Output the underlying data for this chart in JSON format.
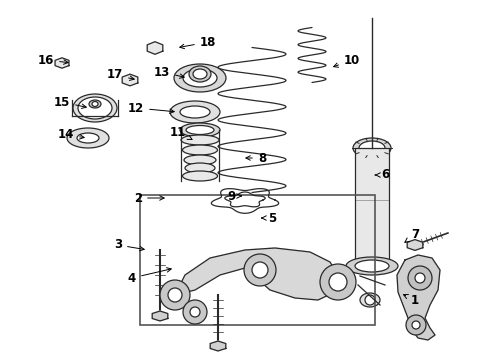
{
  "bg_color": "#ffffff",
  "line_color": "#2a2a2a",
  "label_color": "#000000",
  "figsize": [
    4.89,
    3.6
  ],
  "dpi": 100,
  "font_size": 8.5,
  "label_positions": {
    "1": [
      415,
      300,
      400,
      293
    ],
    "2": [
      138,
      198,
      168,
      198
    ],
    "3": [
      118,
      245,
      148,
      250
    ],
    "4": [
      132,
      278,
      175,
      268
    ],
    "5": [
      272,
      218,
      258,
      218
    ],
    "6": [
      385,
      175,
      372,
      175
    ],
    "7": [
      415,
      235,
      404,
      243
    ],
    "8": [
      262,
      158,
      242,
      158
    ],
    "9": [
      231,
      196,
      245,
      196
    ],
    "10": [
      352,
      60,
      330,
      68
    ],
    "11": [
      178,
      132,
      193,
      140
    ],
    "12": [
      136,
      108,
      178,
      112
    ],
    "13": [
      162,
      72,
      188,
      78
    ],
    "14": [
      66,
      135,
      88,
      138
    ],
    "15": [
      62,
      102,
      90,
      108
    ],
    "16": [
      46,
      60,
      72,
      63
    ],
    "17": [
      115,
      75,
      138,
      80
    ],
    "18": [
      208,
      42,
      176,
      48
    ]
  }
}
